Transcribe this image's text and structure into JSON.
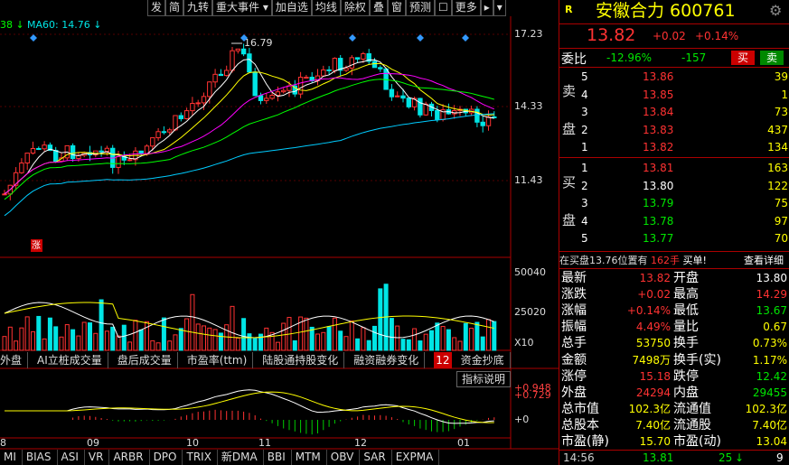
{
  "toolbar": [
    "发",
    "简",
    "九转",
    "重大事件 ▾",
    "加自选",
    "均线",
    "除权",
    "叠",
    "窗",
    "预测",
    "☐",
    "更多",
    "▸",
    "▾"
  ],
  "ma_legend": [
    "38 ↓",
    "MA60: 14.76 ↓"
  ],
  "price_axis": [
    "17.23",
    "14.33",
    "11.43"
  ],
  "high_mark": "16.79",
  "limit_tag": "涨",
  "volume_axis": [
    "50040",
    "25020",
    "X10"
  ],
  "tabs": [
    "外盘",
    "AI立桩成交量",
    "盘后成交量",
    "市盈率(ttm)",
    "陆股通持股变化",
    "融资融券变化",
    "12",
    "资金抄底"
  ],
  "indicator_help": "指标说明",
  "macd_axis": [
    "+0.948",
    "+0.729",
    "+0"
  ],
  "months": [
    "8",
    "09",
    "10",
    "11",
    "12",
    "01"
  ],
  "indicator_tabs": [
    "MI",
    "BIAS",
    "ASI",
    "VR",
    "ARBR",
    "DPO",
    "TRIX",
    "新DMA",
    "BBI",
    "MTM",
    "OBV",
    "SAR",
    "EXPMA"
  ],
  "quote": {
    "flag": "R",
    "name": "安徽合力 600761",
    "price": "13.82",
    "change": "+0.02",
    "pct": "+0.14%",
    "ratio_label": "委比",
    "ratio": "-12.96%",
    "diff": "-157",
    "buy": "买",
    "sell": "卖"
  },
  "asks": {
    "label": [
      "卖",
      "盘"
    ],
    "rows": [
      [
        "5",
        "13.86",
        "39"
      ],
      [
        "4",
        "13.85",
        "1"
      ],
      [
        "3",
        "13.84",
        "73"
      ],
      [
        "2",
        "13.83",
        "437"
      ],
      [
        "1",
        "13.82",
        "134"
      ]
    ]
  },
  "bids": {
    "label": [
      "买",
      "盘"
    ],
    "rows": [
      [
        "1",
        "13.81",
        "163"
      ],
      [
        "2",
        "13.80",
        "122"
      ],
      [
        "3",
        "13.79",
        "75"
      ],
      [
        "4",
        "13.78",
        "97"
      ],
      [
        "5",
        "13.77",
        "70"
      ]
    ]
  },
  "notice": {
    "text": "在买盘13.76位置有",
    "qty": "162手",
    "suffix": "买单!",
    "link": "查看详细"
  },
  "stats": [
    [
      "最新",
      "13.82",
      "开盘",
      "13.80"
    ],
    [
      "涨跌",
      "+0.02",
      "最高",
      "14.29"
    ],
    [
      "涨幅",
      "+0.14%",
      "最低",
      "13.67"
    ],
    [
      "振幅",
      "4.49%",
      "量比",
      "0.67"
    ],
    [
      "总手",
      "53750",
      "换手",
      "0.73%"
    ],
    [
      "金额",
      "7498万",
      "换手(实)",
      "1.17%"
    ],
    [
      "涨停",
      "15.18",
      "跌停",
      "12.42"
    ],
    [
      "外盘",
      "24294",
      "内盘",
      "29455"
    ],
    [
      "总市值",
      "102.3亿",
      "流通值",
      "102.3亿"
    ],
    [
      "总股本",
      "7.40亿",
      "流通股",
      "7.40亿"
    ],
    [
      "市盈(静)",
      "15.70",
      "市盈(动)",
      "13.04"
    ]
  ],
  "footer": [
    "14:56",
    "13.81",
    "25",
    "↓",
    "9"
  ]
}
